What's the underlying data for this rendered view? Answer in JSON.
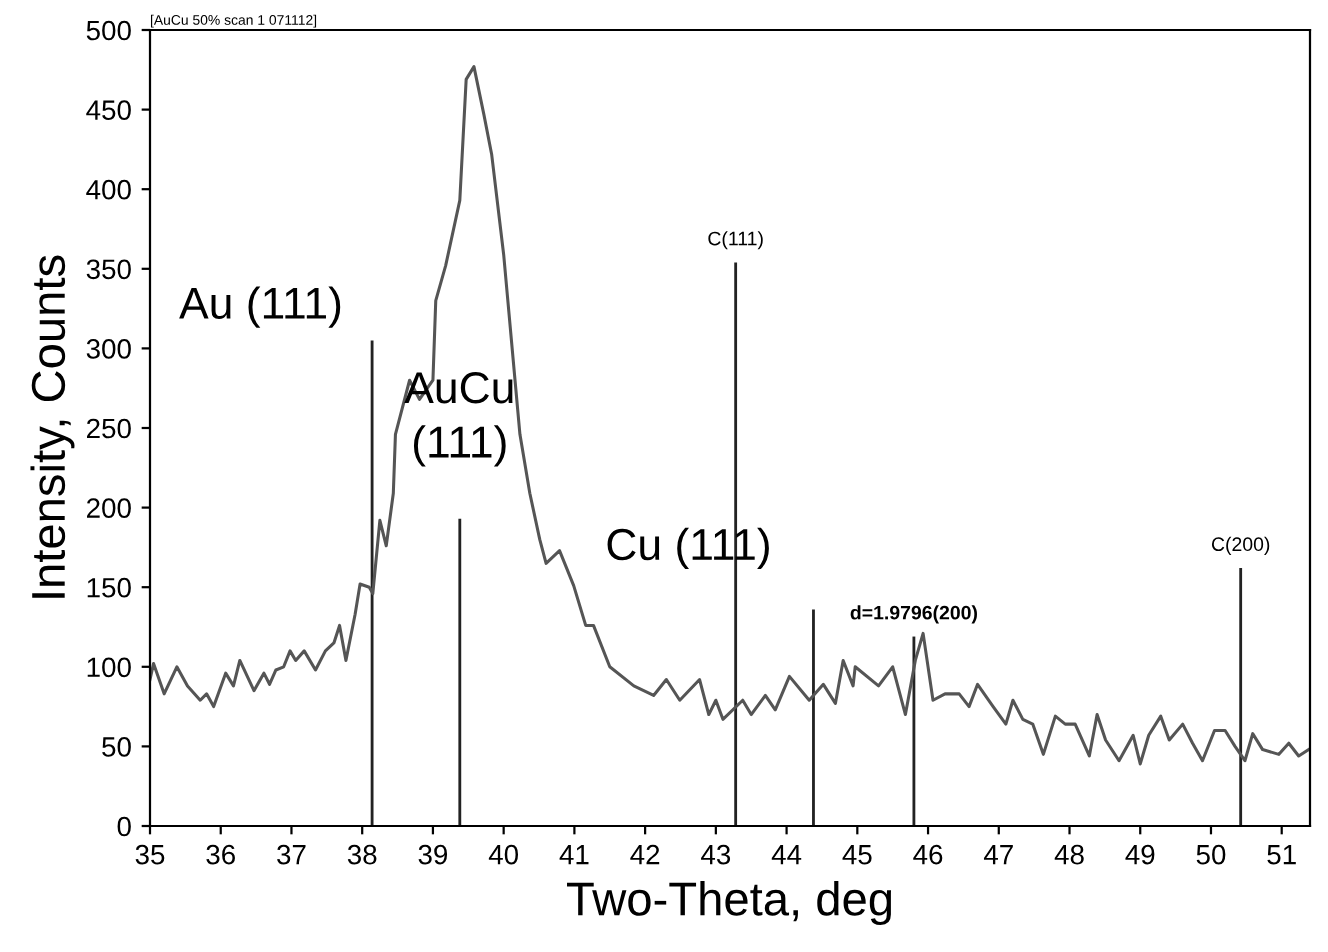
{
  "chart_data": {
    "type": "line",
    "xlabel": "Two-Theta, deg",
    "ylabel": "Intensity, Counts",
    "xlim": [
      35,
      51.4
    ],
    "ylim": [
      0,
      500
    ],
    "xticks": [
      35,
      36,
      37,
      38,
      39,
      40,
      41,
      42,
      43,
      44,
      45,
      46,
      47,
      48,
      49,
      50,
      51
    ],
    "yticks": [
      0,
      50,
      100,
      150,
      200,
      250,
      300,
      350,
      400,
      450,
      500
    ],
    "grid": false,
    "legend": false,
    "series": [
      {
        "color": "#555555",
        "x": [
          35.0,
          35.05,
          35.2,
          35.38,
          35.53,
          35.71,
          35.8,
          35.9,
          36.07,
          36.18,
          36.27,
          36.47,
          36.61,
          36.69,
          36.78,
          36.89,
          36.98,
          37.06,
          37.18,
          37.34,
          37.48,
          37.6,
          37.68,
          37.77,
          37.9,
          37.97,
          38.1,
          38.15,
          38.25,
          38.34,
          38.44,
          38.47,
          38.67,
          38.81,
          39.0,
          39.04,
          39.18,
          39.38,
          39.47,
          39.58,
          39.72,
          39.83,
          40.0,
          40.23,
          40.37,
          40.51,
          40.6,
          40.79,
          40.99,
          41.16,
          41.27,
          41.5,
          41.84,
          42.12,
          42.3,
          42.49,
          42.77,
          42.9,
          43.0,
          43.1,
          43.38,
          43.5,
          43.7,
          43.84,
          44.04,
          44.32,
          44.52,
          44.69,
          44.8,
          44.94,
          44.97,
          45.3,
          45.5,
          45.68,
          45.82,
          45.93,
          46.07,
          46.24,
          46.44,
          46.58,
          46.7,
          46.92,
          47.1,
          47.2,
          47.34,
          47.48,
          47.63,
          47.8,
          47.94,
          48.08,
          48.28,
          48.39,
          48.51,
          48.7,
          48.9,
          49.0,
          49.12,
          49.29,
          49.41,
          49.6,
          49.74,
          49.88,
          50.05,
          50.2,
          50.34,
          50.48,
          50.59,
          50.73,
          50.96,
          51.1,
          51.24,
          51.38
        ],
        "values": [
          92,
          102,
          83,
          100,
          88,
          79,
          83,
          75,
          96,
          88,
          104,
          85,
          96,
          89,
          98,
          100,
          110,
          104,
          110,
          98,
          110,
          115,
          126,
          104,
          133,
          152,
          150,
          146,
          192,
          176,
          209,
          246,
          280,
          268,
          280,
          330,
          352,
          393,
          469,
          477,
          447,
          422,
          359,
          246,
          209,
          180,
          165,
          173,
          151,
          126,
          126,
          100,
          88,
          82,
          92,
          79,
          92,
          70,
          79,
          67,
          79,
          70,
          82,
          73,
          94,
          79,
          89,
          77,
          104,
          88,
          100,
          88,
          100,
          70,
          104,
          121,
          79,
          83,
          83,
          75,
          89,
          75,
          64,
          79,
          67,
          64,
          45,
          69,
          64,
          64,
          44,
          70,
          54,
          41,
          57,
          39,
          57,
          69,
          54,
          64,
          52,
          41,
          60,
          60,
          50,
          41,
          58,
          48,
          45,
          52,
          44,
          48
        ]
      },
      {
        "type": "bar",
        "color": "#222222",
        "x": [
          38.14,
          39.38,
          43.28,
          44.38,
          45.8,
          50.42
        ],
        "values": [
          305,
          193,
          354,
          136,
          119,
          162
        ]
      }
    ],
    "annotations": [
      "[AuCu 50% scan 1 071112]",
      {
        "text": "Au (111)",
        "x": 38.14,
        "y": 305
      },
      {
        "text": "AuCu\n(111)",
        "x": 39.38,
        "y": 193
      },
      {
        "text": "Cu (111)",
        "x": 44.38,
        "y": 136
      },
      {
        "text": "C(111)",
        "x": 43.28,
        "y": 354
      },
      {
        "text": "d=1.9796(200)",
        "x": 45.8,
        "y": 119
      },
      {
        "text": "C(200)",
        "x": 50.42,
        "y": 162
      }
    ]
  }
}
